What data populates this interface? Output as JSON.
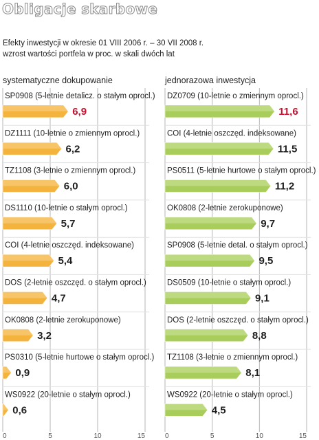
{
  "header": {
    "title": "Obligacje skarbowe",
    "subtitle_line1": "Efekty inwestycji w okresie 01 VIII 2006 r. – 30 VII 2008 r.",
    "subtitle_line2": "wzrost wartości portfela w proc. w skali dwóch lat"
  },
  "colors": {
    "left_bar": "#f4b33c",
    "left_bar_light": "#f9d38a",
    "right_bar": "#a9cd5a",
    "right_bar_light": "#cfe6a0",
    "highlight_value": "#c8102e",
    "normal_value": "#1e1e1e",
    "gridline": "#b5b5b5"
  },
  "chart_data": [
    {
      "type": "bar",
      "orientation": "horizontal",
      "title": "systematyczne dokupowanie",
      "categories": [
        "SP0908 (5-letnie detalicz. o stałym oprocl.)",
        "DZ1111 (10-letnie o zmiennym oprocl.)",
        "TZ1108 (3-letnie o zmiennym oprocl.)",
        "DS1110 (10-letnie o stałym oprocl.)",
        "COI (4-letnie oszczęd. indeksowane)",
        "DOS (2-letnie oszczęd. o stałym oprocl.)",
        "OK0808 (2-letnie zerokuponowe)",
        "PS0310 (5-letnie hurtowe o stałym oprocl.)",
        "WS0922 (20-letnie o stałym oprocl.)"
      ],
      "values": [
        6.9,
        6.2,
        6.0,
        5.7,
        5.4,
        4.7,
        3.2,
        0.9,
        0.6
      ],
      "value_labels": [
        "6,9",
        "6,2",
        "6,0",
        "5,7",
        "5,4",
        "4,7",
        "3,2",
        "0,9",
        "0,6"
      ],
      "highlight_index": 0,
      "xlim": [
        0,
        15
      ],
      "xticks": [
        0,
        5,
        10,
        15
      ],
      "xtick_labels": [
        "0",
        "5",
        "10",
        "15"
      ],
      "grid": true
    },
    {
      "type": "bar",
      "orientation": "horizontal",
      "title": "jednorazowa inwestycja",
      "categories": [
        "DZ0709 (10-letnie o zmiennym oprocl.)",
        "COI (4-letnie oszczęd. indeksowane)",
        "PS0511 (5-letnie hurtowe o stałym oprocl.)",
        "OK0808 (2-letnie zerokuponowe)",
        "SP0908 (5-letnie detal. o stałym oprocl.)",
        "DS0509 (10-letnie o stałym oprocl.)",
        "DOS (2-letnie oszczęd. o stałym oprocl.)",
        "TZ1108 (3-letnie o zmiennym oprocl.)",
        "WS0922 (20-letnie o stałym oprocl.)"
      ],
      "values": [
        11.6,
        11.5,
        11.2,
        9.7,
        9.5,
        9.1,
        8.8,
        8.1,
        4.5
      ],
      "value_labels": [
        "11,6",
        "11,5",
        "11,2",
        "9,7",
        "9,5",
        "9,1",
        "8,8",
        "8,1",
        "4,5"
      ],
      "highlight_index": 0,
      "xlim": [
        0,
        15
      ],
      "xticks": [
        0,
        5,
        10,
        15
      ],
      "xtick_labels": [
        "0",
        "5",
        "10",
        "15"
      ],
      "grid": true
    }
  ]
}
